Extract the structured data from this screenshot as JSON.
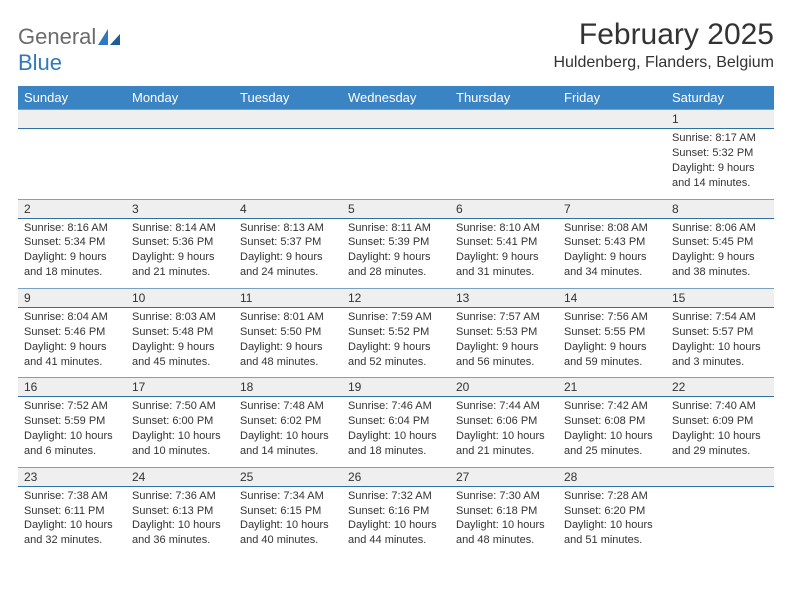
{
  "brand": {
    "part1": "General",
    "part2": "Blue"
  },
  "title": "February 2025",
  "location": "Huldenberg, Flanders, Belgium",
  "colors": {
    "header_bg": "#3b84c4",
    "header_text": "#ffffff",
    "daynum_bg": "#efefef",
    "rule": "#2f6fa8",
    "brand_blue": "#2f7abf",
    "brand_gray": "#6b6b6b",
    "text": "#333333",
    "background": "#ffffff"
  },
  "weekdays": [
    "Sunday",
    "Monday",
    "Tuesday",
    "Wednesday",
    "Thursday",
    "Friday",
    "Saturday"
  ],
  "weeks": [
    [
      null,
      null,
      null,
      null,
      null,
      null,
      {
        "n": "1",
        "sunrise": "Sunrise: 8:17 AM",
        "sunset": "Sunset: 5:32 PM",
        "daylight": "Daylight: 9 hours and 14 minutes."
      }
    ],
    [
      {
        "n": "2",
        "sunrise": "Sunrise: 8:16 AM",
        "sunset": "Sunset: 5:34 PM",
        "daylight": "Daylight: 9 hours and 18 minutes."
      },
      {
        "n": "3",
        "sunrise": "Sunrise: 8:14 AM",
        "sunset": "Sunset: 5:36 PM",
        "daylight": "Daylight: 9 hours and 21 minutes."
      },
      {
        "n": "4",
        "sunrise": "Sunrise: 8:13 AM",
        "sunset": "Sunset: 5:37 PM",
        "daylight": "Daylight: 9 hours and 24 minutes."
      },
      {
        "n": "5",
        "sunrise": "Sunrise: 8:11 AM",
        "sunset": "Sunset: 5:39 PM",
        "daylight": "Daylight: 9 hours and 28 minutes."
      },
      {
        "n": "6",
        "sunrise": "Sunrise: 8:10 AM",
        "sunset": "Sunset: 5:41 PM",
        "daylight": "Daylight: 9 hours and 31 minutes."
      },
      {
        "n": "7",
        "sunrise": "Sunrise: 8:08 AM",
        "sunset": "Sunset: 5:43 PM",
        "daylight": "Daylight: 9 hours and 34 minutes."
      },
      {
        "n": "8",
        "sunrise": "Sunrise: 8:06 AM",
        "sunset": "Sunset: 5:45 PM",
        "daylight": "Daylight: 9 hours and 38 minutes."
      }
    ],
    [
      {
        "n": "9",
        "sunrise": "Sunrise: 8:04 AM",
        "sunset": "Sunset: 5:46 PM",
        "daylight": "Daylight: 9 hours and 41 minutes."
      },
      {
        "n": "10",
        "sunrise": "Sunrise: 8:03 AM",
        "sunset": "Sunset: 5:48 PM",
        "daylight": "Daylight: 9 hours and 45 minutes."
      },
      {
        "n": "11",
        "sunrise": "Sunrise: 8:01 AM",
        "sunset": "Sunset: 5:50 PM",
        "daylight": "Daylight: 9 hours and 48 minutes."
      },
      {
        "n": "12",
        "sunrise": "Sunrise: 7:59 AM",
        "sunset": "Sunset: 5:52 PM",
        "daylight": "Daylight: 9 hours and 52 minutes."
      },
      {
        "n": "13",
        "sunrise": "Sunrise: 7:57 AM",
        "sunset": "Sunset: 5:53 PM",
        "daylight": "Daylight: 9 hours and 56 minutes."
      },
      {
        "n": "14",
        "sunrise": "Sunrise: 7:56 AM",
        "sunset": "Sunset: 5:55 PM",
        "daylight": "Daylight: 9 hours and 59 minutes."
      },
      {
        "n": "15",
        "sunrise": "Sunrise: 7:54 AM",
        "sunset": "Sunset: 5:57 PM",
        "daylight": "Daylight: 10 hours and 3 minutes."
      }
    ],
    [
      {
        "n": "16",
        "sunrise": "Sunrise: 7:52 AM",
        "sunset": "Sunset: 5:59 PM",
        "daylight": "Daylight: 10 hours and 6 minutes."
      },
      {
        "n": "17",
        "sunrise": "Sunrise: 7:50 AM",
        "sunset": "Sunset: 6:00 PM",
        "daylight": "Daylight: 10 hours and 10 minutes."
      },
      {
        "n": "18",
        "sunrise": "Sunrise: 7:48 AM",
        "sunset": "Sunset: 6:02 PM",
        "daylight": "Daylight: 10 hours and 14 minutes."
      },
      {
        "n": "19",
        "sunrise": "Sunrise: 7:46 AM",
        "sunset": "Sunset: 6:04 PM",
        "daylight": "Daylight: 10 hours and 18 minutes."
      },
      {
        "n": "20",
        "sunrise": "Sunrise: 7:44 AM",
        "sunset": "Sunset: 6:06 PM",
        "daylight": "Daylight: 10 hours and 21 minutes."
      },
      {
        "n": "21",
        "sunrise": "Sunrise: 7:42 AM",
        "sunset": "Sunset: 6:08 PM",
        "daylight": "Daylight: 10 hours and 25 minutes."
      },
      {
        "n": "22",
        "sunrise": "Sunrise: 7:40 AM",
        "sunset": "Sunset: 6:09 PM",
        "daylight": "Daylight: 10 hours and 29 minutes."
      }
    ],
    [
      {
        "n": "23",
        "sunrise": "Sunrise: 7:38 AM",
        "sunset": "Sunset: 6:11 PM",
        "daylight": "Daylight: 10 hours and 32 minutes."
      },
      {
        "n": "24",
        "sunrise": "Sunrise: 7:36 AM",
        "sunset": "Sunset: 6:13 PM",
        "daylight": "Daylight: 10 hours and 36 minutes."
      },
      {
        "n": "25",
        "sunrise": "Sunrise: 7:34 AM",
        "sunset": "Sunset: 6:15 PM",
        "daylight": "Daylight: 10 hours and 40 minutes."
      },
      {
        "n": "26",
        "sunrise": "Sunrise: 7:32 AM",
        "sunset": "Sunset: 6:16 PM",
        "daylight": "Daylight: 10 hours and 44 minutes."
      },
      {
        "n": "27",
        "sunrise": "Sunrise: 7:30 AM",
        "sunset": "Sunset: 6:18 PM",
        "daylight": "Daylight: 10 hours and 48 minutes."
      },
      {
        "n": "28",
        "sunrise": "Sunrise: 7:28 AM",
        "sunset": "Sunset: 6:20 PM",
        "daylight": "Daylight: 10 hours and 51 minutes."
      },
      null
    ]
  ]
}
